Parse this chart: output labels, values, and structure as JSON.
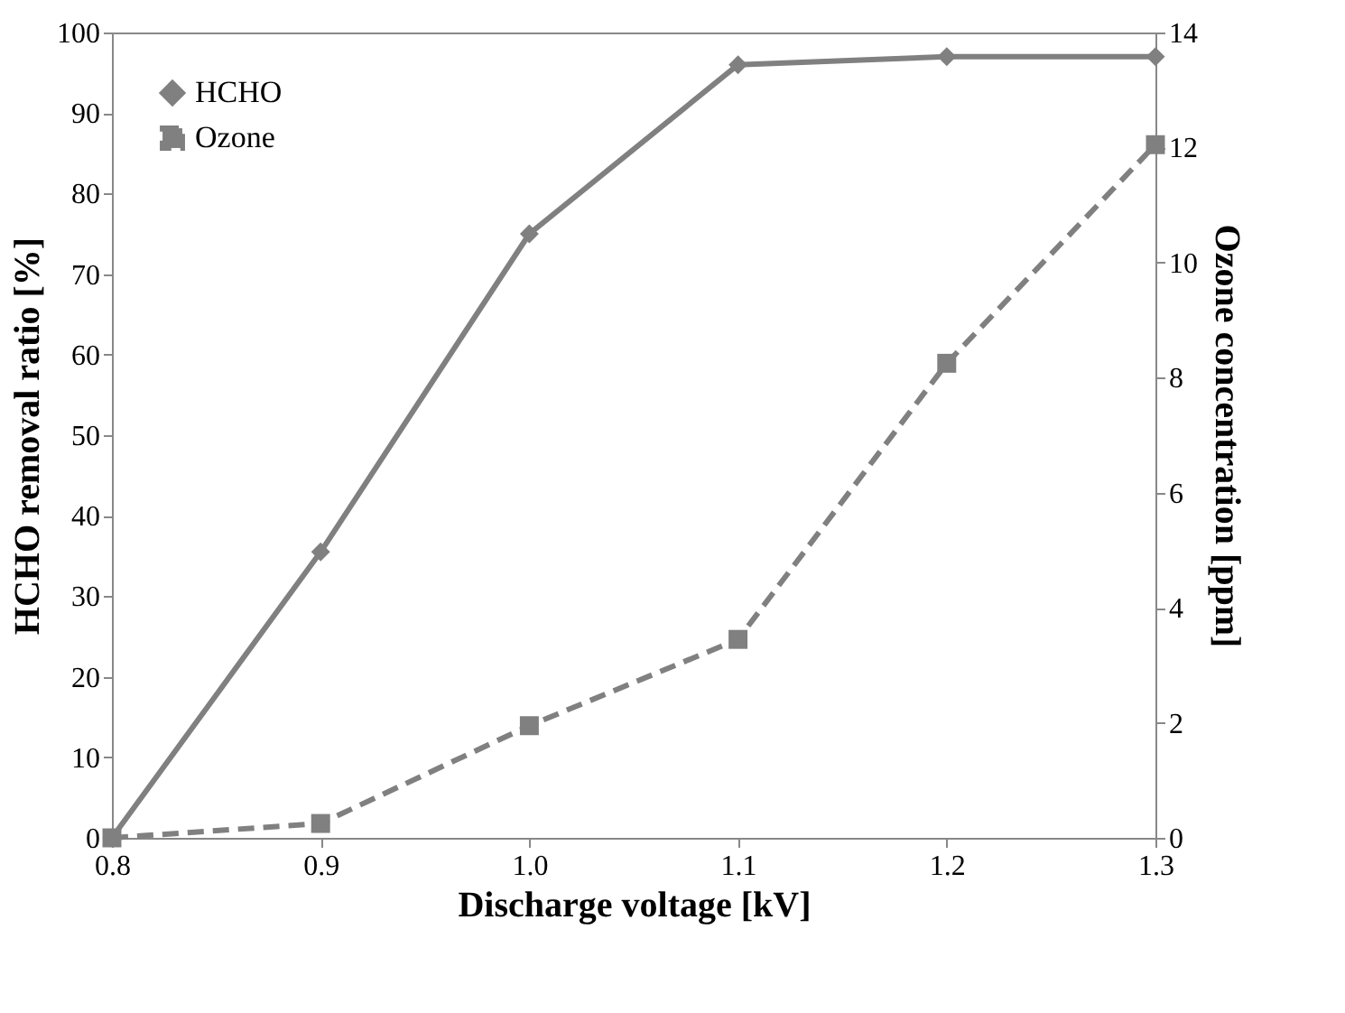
{
  "chart_data": {
    "type": "line",
    "xlabel": "Discharge voltage [kV]",
    "ylabel": "HCHO removal ratio [%]",
    "y2label": "Ozone concentration [ppm]",
    "x": [
      0.8,
      0.9,
      1.0,
      1.1,
      1.2,
      1.3
    ],
    "xlim": [
      0.8,
      1.3
    ],
    "xticks": [
      {
        "value": 0.8,
        "label": "0.8"
      },
      {
        "value": 0.9,
        "label": "0.9"
      },
      {
        "value": 1.0,
        "label": "1.0"
      },
      {
        "value": 1.1,
        "label": "1.1"
      },
      {
        "value": 1.2,
        "label": "1.2"
      },
      {
        "value": 1.3,
        "label": "1.3"
      }
    ],
    "ylim": [
      0,
      100
    ],
    "yticks": [
      0,
      10,
      20,
      30,
      40,
      50,
      60,
      70,
      80,
      90,
      100
    ],
    "y2lim": [
      0,
      14
    ],
    "y2ticks": [
      0,
      2,
      4,
      6,
      8,
      10,
      12,
      14
    ],
    "series": [
      {
        "name": "HCHO",
        "color": "#808080",
        "marker": "diamond",
        "line_style": "solid",
        "values": [
          0,
          35.5,
          75,
          96,
          97,
          97
        ]
      },
      {
        "name": "Ozone",
        "color": "#808080",
        "marker": "square",
        "line_style": "dashed",
        "axis": "y2",
        "values": [
          0,
          0.25,
          1.95,
          3.45,
          8.25,
          12.05
        ]
      }
    ],
    "legend": "top left",
    "grid": false
  }
}
